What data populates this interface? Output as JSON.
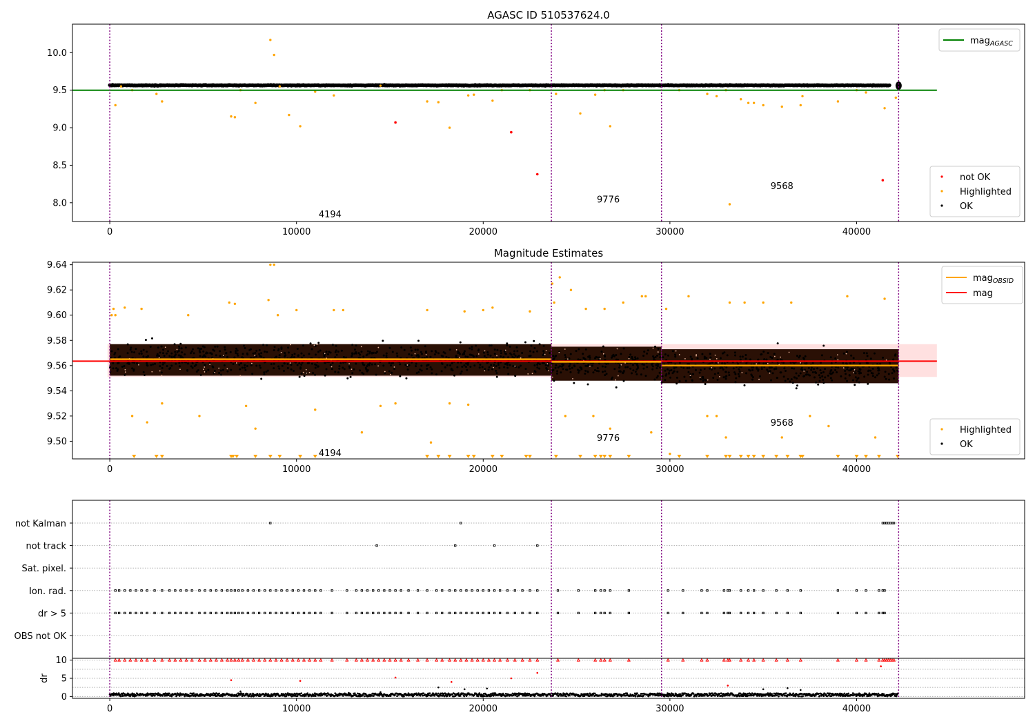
{
  "figure": {
    "title": "AGASC ID 510537624.0",
    "background": "#ffffff",
    "colors": {
      "ok": "#000000",
      "highlighted": "#ffa500",
      "not_ok": "#ff0000",
      "mag_agasc": "#008000",
      "mag_obsid": "#ffa500",
      "mag": "#ff0000",
      "obs_boundary": "#800080",
      "band_fill": "#ffcccc",
      "core_fill": "#2a1005",
      "grid": "#b0b0b0"
    }
  },
  "chart_data": [
    {
      "id": "top",
      "type": "scatter",
      "title": "",
      "xlim": [
        -2000,
        49000
      ],
      "ylim": [
        7.75,
        10.38
      ],
      "xticks": [
        0,
        10000,
        20000,
        30000,
        40000
      ],
      "yticks": [
        8.0,
        8.5,
        9.0,
        9.5,
        10.0
      ],
      "ytick_labels": [
        "8.0",
        "8.5",
        "9.0",
        "9.5",
        "10.0"
      ],
      "obs_boundaries": [
        0,
        23650,
        29550,
        42250
      ],
      "obs_labels": [
        {
          "text": "4194",
          "x": 11800,
          "y": 7.85
        },
        {
          "text": "9776",
          "x": 26700,
          "y": 8.05
        },
        {
          "text": "9568",
          "x": 36000,
          "y": 8.23
        }
      ],
      "hline": {
        "name": "mag_AGASC",
        "y": 9.5,
        "x": [
          0,
          44300
        ]
      },
      "ok_band": {
        "x": [
          0,
          41800
        ],
        "y_center": 9.565,
        "spread": 0.03
      },
      "ok_cluster": {
        "x": 42250,
        "y": 9.56
      },
      "highlighted_points": [
        [
          300,
          9.3
        ],
        [
          600,
          9.55
        ],
        [
          1200,
          9.5
        ],
        [
          2500,
          9.45
        ],
        [
          2800,
          9.35
        ],
        [
          6500,
          9.15
        ],
        [
          6700,
          9.14
        ],
        [
          7000,
          9.5
        ],
        [
          7800,
          9.33
        ],
        [
          8600,
          10.17
        ],
        [
          8800,
          9.97
        ],
        [
          9100,
          9.55
        ],
        [
          9600,
          9.17
        ],
        [
          10200,
          9.02
        ],
        [
          11000,
          9.48
        ],
        [
          12000,
          9.43
        ],
        [
          14500,
          9.56
        ],
        [
          17000,
          9.35
        ],
        [
          17600,
          9.34
        ],
        [
          18200,
          9.0
        ],
        [
          19200,
          9.43
        ],
        [
          19500,
          9.44
        ],
        [
          20500,
          9.36
        ],
        [
          21000,
          9.5
        ],
        [
          22500,
          9.5
        ],
        [
          23900,
          9.45
        ],
        [
          25200,
          9.19
        ],
        [
          26000,
          9.44
        ],
        [
          26500,
          9.5
        ],
        [
          26800,
          9.02
        ],
        [
          27500,
          9.5
        ],
        [
          30500,
          9.5
        ],
        [
          32000,
          9.45
        ],
        [
          32500,
          9.42
        ],
        [
          33000,
          9.5
        ],
        [
          33800,
          9.38
        ],
        [
          34200,
          9.33
        ],
        [
          34500,
          9.33
        ],
        [
          35000,
          9.3
        ],
        [
          36000,
          9.28
        ],
        [
          37000,
          9.3
        ],
        [
          37100,
          9.42
        ],
        [
          39000,
          9.35
        ],
        [
          40000,
          9.5
        ],
        [
          40500,
          9.47
        ],
        [
          41500,
          9.26
        ],
        [
          42100,
          9.4
        ]
      ],
      "not_ok_points": [
        [
          15300,
          9.07
        ],
        [
          21500,
          8.94
        ],
        [
          22900,
          8.38
        ],
        [
          41400,
          8.3
        ]
      ],
      "extra_highlighted": [
        [
          33200,
          7.98
        ]
      ],
      "legend_lines": {
        "entries": [
          {
            "label": "mag",
            "sub": "AGASC",
            "color": "#008000"
          }
        ],
        "placement": "upper right"
      },
      "legend_points": {
        "entries": [
          {
            "label": "not OK",
            "color": "#ff0000"
          },
          {
            "label": "Highlighted",
            "color": "#ffa500"
          },
          {
            "label": "OK",
            "color": "#000000"
          }
        ],
        "placement": "lower right"
      }
    },
    {
      "id": "middle",
      "type": "scatter",
      "title": "Magnitude Estimates",
      "xlim": [
        -2000,
        49000
      ],
      "ylim": [
        9.486,
        9.642
      ],
      "xticks": [
        0,
        10000,
        20000,
        30000,
        40000
      ],
      "yticks": [
        9.5,
        9.52,
        9.54,
        9.56,
        9.58,
        9.6,
        9.62,
        9.64
      ],
      "ytick_labels": [
        "9.50",
        "9.52",
        "9.54",
        "9.56",
        "9.58",
        "9.60",
        "9.62",
        "9.64"
      ],
      "obs_boundaries": [
        0,
        23650,
        29550,
        42250
      ],
      "obs_labels": [
        {
          "text": "4194",
          "x": 11800,
          "y": 9.491
        },
        {
          "text": "9776",
          "x": 26700,
          "y": 9.503
        },
        {
          "text": "9568",
          "x": 36000,
          "y": 9.515
        }
      ],
      "mag_line": {
        "name": "mag",
        "y": 9.5635,
        "x": [
          -2000,
          44300
        ],
        "band": [
          9.551,
          9.577
        ]
      },
      "mag_obsid_segments": [
        {
          "x": [
            0,
            23650
          ],
          "y": 9.565
        },
        {
          "x": [
            23650,
            29550
          ],
          "y": 9.563
        },
        {
          "x": [
            29550,
            42250
          ],
          "y": 9.56
        }
      ],
      "ok_segments": [
        {
          "x": [
            0,
            23650
          ],
          "center": 9.565,
          "core": [
            9.552,
            9.577
          ],
          "outer": [
            9.533,
            9.598
          ]
        },
        {
          "x": [
            23650,
            29550
          ],
          "center": 9.562,
          "core": [
            9.548,
            9.575
          ],
          "outer": [
            9.528,
            9.598
          ]
        },
        {
          "x": [
            29550,
            42250
          ],
          "center": 9.558,
          "core": [
            9.546,
            9.573
          ],
          "outer": [
            9.525,
            9.598
          ]
        }
      ],
      "highlighted_points": [
        [
          100,
          9.6
        ],
        [
          200,
          9.605
        ],
        [
          300,
          9.6
        ],
        [
          800,
          9.606
        ],
        [
          1200,
          9.52
        ],
        [
          1700,
          9.605
        ],
        [
          2000,
          9.515
        ],
        [
          2800,
          9.53
        ],
        [
          4200,
          9.6
        ],
        [
          4800,
          9.52
        ],
        [
          6400,
          9.61
        ],
        [
          6700,
          9.609
        ],
        [
          7300,
          9.528
        ],
        [
          7800,
          9.51
        ],
        [
          8500,
          9.612
        ],
        [
          8600,
          9.64
        ],
        [
          8800,
          9.64
        ],
        [
          9000,
          9.6
        ],
        [
          10000,
          9.604
        ],
        [
          11000,
          9.525
        ],
        [
          12000,
          9.604
        ],
        [
          12500,
          9.604
        ],
        [
          13500,
          9.507
        ],
        [
          14500,
          9.528
        ],
        [
          15300,
          9.53
        ],
        [
          17000,
          9.604
        ],
        [
          17200,
          9.499
        ],
        [
          18200,
          9.53
        ],
        [
          19000,
          9.603
        ],
        [
          19200,
          9.529
        ],
        [
          20000,
          9.604
        ],
        [
          20500,
          9.606
        ],
        [
          22500,
          9.603
        ],
        [
          23700,
          9.625
        ],
        [
          23800,
          9.61
        ],
        [
          24100,
          9.63
        ],
        [
          24400,
          9.52
        ],
        [
          24700,
          9.62
        ],
        [
          25500,
          9.605
        ],
        [
          25900,
          9.52
        ],
        [
          26500,
          9.605
        ],
        [
          26800,
          9.51
        ],
        [
          27500,
          9.61
        ],
        [
          28500,
          9.615
        ],
        [
          28700,
          9.615
        ],
        [
          29000,
          9.507
        ],
        [
          29800,
          9.605
        ],
        [
          30000,
          9.49
        ],
        [
          31000,
          9.615
        ],
        [
          32000,
          9.52
        ],
        [
          32500,
          9.52
        ],
        [
          33000,
          9.503
        ],
        [
          33200,
          9.61
        ],
        [
          34000,
          9.61
        ],
        [
          35000,
          9.61
        ],
        [
          36000,
          9.503
        ],
        [
          36500,
          9.61
        ],
        [
          37500,
          9.52
        ],
        [
          38500,
          9.512
        ],
        [
          39500,
          9.615
        ],
        [
          41000,
          9.503
        ],
        [
          41500,
          9.613
        ]
      ],
      "lower_markers_x": [
        1300,
        2500,
        2800,
        6500,
        6600,
        6800,
        7800,
        8600,
        9100,
        10200,
        11000,
        17000,
        17600,
        18200,
        19200,
        19500,
        20500,
        21000,
        22300,
        22500,
        23900,
        25200,
        26000,
        26300,
        26500,
        26800,
        27800,
        30500,
        32000,
        33000,
        33200,
        33800,
        34200,
        34500,
        35000,
        35700,
        36300,
        37000,
        37100,
        39000,
        40000,
        40500,
        41200,
        42200
      ],
      "legend_lines": {
        "entries": [
          {
            "label": "mag",
            "sub": "OBSID",
            "color": "#ffa500"
          },
          {
            "label": "mag",
            "sub": "",
            "color": "#ff0000"
          }
        ],
        "placement": "upper right"
      },
      "legend_points": {
        "entries": [
          {
            "label": "Highlighted",
            "color": "#ffa500"
          },
          {
            "label": "OK",
            "color": "#000000"
          }
        ],
        "placement": "lower right"
      }
    },
    {
      "id": "flags",
      "type": "scatter",
      "title": "",
      "xlim": [
        -2000,
        49000
      ],
      "categories": [
        "not Kalman",
        "not track",
        "Sat. pixel.",
        "Ion. rad.",
        "dr > 5",
        "OBS not OK"
      ],
      "obs_boundaries": [
        0,
        23650,
        29550,
        42250
      ],
      "flag_points": {
        "not Kalman": [
          8600,
          18800,
          41400,
          41500,
          41600,
          41700,
          41800,
          41900,
          42000
        ],
        "not track": [
          14300,
          18500,
          20600,
          22900
        ],
        "Sat. pixel.": [],
        "Ion. rad.": [
          300,
          500,
          800,
          1100,
          1400,
          1700,
          2000,
          2400,
          2800,
          3200,
          3500,
          3800,
          4100,
          4400,
          4800,
          5100,
          5400,
          5700,
          6000,
          6300,
          6500,
          6700,
          6900,
          7100,
          7400,
          7700,
          8000,
          8300,
          8600,
          8900,
          9200,
          9500,
          9800,
          10100,
          10400,
          10700,
          11000,
          11300,
          11900,
          12700,
          13200,
          13500,
          13800,
          14100,
          14400,
          14700,
          15000,
          15300,
          15600,
          16000,
          16500,
          17000,
          17500,
          17800,
          18200,
          18500,
          18800,
          19100,
          19400,
          19700,
          20000,
          20300,
          20600,
          20900,
          21300,
          21700,
          22100,
          22500,
          22900,
          24000,
          25100,
          26000,
          26300,
          26500,
          26800,
          27800,
          29900,
          30700,
          31700,
          32000,
          32900,
          33100,
          33200,
          33800,
          34200,
          34500,
          35000,
          35700,
          36300,
          37000,
          39000,
          40000,
          40500,
          41200,
          41400,
          41500
        ],
        "dr > 5": [
          300,
          500,
          800,
          1100,
          1400,
          1700,
          2000,
          2400,
          2800,
          3200,
          3500,
          3800,
          4100,
          4400,
          4800,
          5100,
          5400,
          5700,
          6000,
          6300,
          6500,
          6700,
          6900,
          7100,
          7400,
          7700,
          8000,
          8300,
          8600,
          8900,
          9200,
          9500,
          9800,
          10100,
          10400,
          10700,
          11000,
          11300,
          11900,
          12700,
          13200,
          13500,
          13800,
          14100,
          14400,
          14700,
          15000,
          15300,
          15600,
          16000,
          16500,
          17000,
          17500,
          17800,
          18200,
          18500,
          18800,
          19100,
          19400,
          19700,
          20000,
          20300,
          20600,
          20900,
          21300,
          21700,
          22100,
          22500,
          22900,
          24000,
          25100,
          26000,
          26300,
          26500,
          26800,
          27800,
          29900,
          30700,
          31700,
          32000,
          32900,
          33100,
          33200,
          33800,
          34200,
          34500,
          35000,
          35700,
          36300,
          37000,
          39000,
          40000,
          40500,
          41200,
          41400,
          41500
        ],
        "OBS not OK": []
      }
    },
    {
      "id": "dr",
      "type": "scatter",
      "ylabel": "dr",
      "xlim": [
        -2000,
        49000
      ],
      "ylim": [
        -0.5,
        10.5
      ],
      "xticks": [
        0,
        10000,
        20000,
        30000,
        40000
      ],
      "yticks": [
        0,
        5,
        10
      ],
      "ytick_labels": [
        "0",
        "5",
        "10"
      ],
      "obs_boundaries": [
        0,
        23650,
        29550,
        42250
      ],
      "clipped_markers_x": [
        300,
        500,
        800,
        1100,
        1400,
        1700,
        2000,
        2400,
        2800,
        3200,
        3500,
        3800,
        4100,
        4400,
        4800,
        5100,
        5400,
        5700,
        6000,
        6300,
        6500,
        6700,
        6900,
        7100,
        7400,
        7700,
        8000,
        8300,
        8600,
        8900,
        9200,
        9500,
        9800,
        10100,
        10400,
        10700,
        11000,
        11300,
        11900,
        12700,
        13200,
        13500,
        13800,
        14100,
        14400,
        14700,
        15000,
        15300,
        15600,
        16000,
        16500,
        17000,
        17500,
        17800,
        18200,
        18500,
        18800,
        19100,
        19400,
        19700,
        20000,
        20300,
        20600,
        20900,
        21300,
        21700,
        22100,
        22500,
        22900,
        24000,
        25100,
        26000,
        26300,
        26500,
        26800,
        27800,
        29900,
        30700,
        31700,
        32000,
        32900,
        33100,
        33200,
        33800,
        34200,
        34500,
        35000,
        35700,
        36300,
        37000,
        39000,
        40000,
        40500,
        41200,
        41400,
        41500,
        41600,
        41700,
        41800,
        41900,
        42000
      ],
      "red_points": [
        [
          6500,
          4.5
        ],
        [
          10200,
          4.3
        ],
        [
          15300,
          5.2
        ],
        [
          18300,
          4.0
        ],
        [
          21500,
          5.0
        ],
        [
          22900,
          6.5
        ],
        [
          33100,
          3.0
        ],
        [
          41300,
          8.3
        ]
      ],
      "black_outliers": [
        [
          17600,
          2.5
        ],
        [
          19000,
          2.0
        ],
        [
          20200,
          2.2
        ],
        [
          35000,
          2.0
        ],
        [
          36300,
          2.3
        ],
        [
          37000,
          1.8
        ],
        [
          12800,
          1.0
        ],
        [
          14500,
          1.2
        ],
        [
          7000,
          1.4
        ]
      ],
      "ok_band": {
        "x": [
          0,
          42250
        ],
        "y_low": 0.05,
        "y_high": 0.9
      }
    }
  ]
}
